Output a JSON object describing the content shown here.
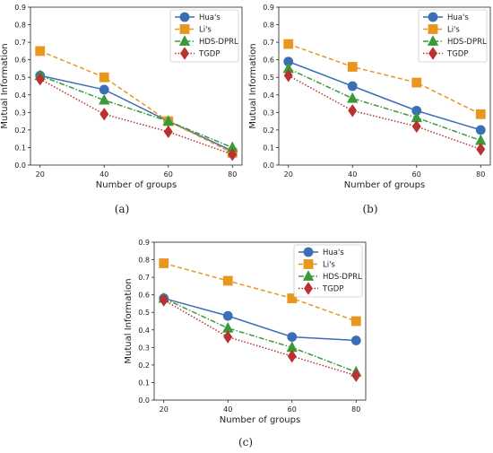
{
  "chart_data": [
    {
      "type": "line",
      "caption": "(a)",
      "xlabel": "Number of groups",
      "ylabel": "Mutual Information",
      "x": [
        20,
        40,
        60,
        80
      ],
      "xticks": [
        "20",
        "40",
        "60",
        "80"
      ],
      "ylim": [
        0,
        0.9
      ],
      "yticks": [
        "0.0",
        "0.1",
        "0.2",
        "0.3",
        "0.4",
        "0.5",
        "0.6",
        "0.7",
        "0.8",
        "0.9"
      ],
      "legend_position": "top-right",
      "grid": false,
      "series": [
        {
          "name": "Hua's",
          "values": [
            0.51,
            0.43,
            0.25,
            0.08
          ],
          "color": "#3a6fb5",
          "dash": "solid",
          "marker": "circle"
        },
        {
          "name": "Li's",
          "values": [
            0.65,
            0.5,
            0.25,
            0.07
          ],
          "color": "#e8961e",
          "dash": "dashed",
          "marker": "square"
        },
        {
          "name": "HDS-DPRL",
          "values": [
            0.51,
            0.37,
            0.25,
            0.1
          ],
          "color": "#3a9a3a",
          "dash": "dashdot",
          "marker": "triangle"
        },
        {
          "name": "TGDP",
          "values": [
            0.49,
            0.29,
            0.19,
            0.06
          ],
          "color": "#b83232",
          "dash": "dotted",
          "marker": "diamond"
        }
      ]
    },
    {
      "type": "line",
      "caption": "(b)",
      "xlabel": "Number of groups",
      "ylabel": "Mutual Information",
      "x": [
        20,
        40,
        60,
        80
      ],
      "xticks": [
        "20",
        "40",
        "60",
        "80"
      ],
      "ylim": [
        0,
        0.9
      ],
      "yticks": [
        "0.0",
        "0.1",
        "0.2",
        "0.3",
        "0.4",
        "0.5",
        "0.6",
        "0.7",
        "0.8",
        "0.9"
      ],
      "legend_position": "top-right",
      "grid": false,
      "series": [
        {
          "name": "Hua's",
          "values": [
            0.59,
            0.45,
            0.31,
            0.2
          ],
          "color": "#3a6fb5",
          "dash": "solid",
          "marker": "circle"
        },
        {
          "name": "Li's",
          "values": [
            0.69,
            0.56,
            0.47,
            0.29
          ],
          "color": "#e8961e",
          "dash": "dashed",
          "marker": "square"
        },
        {
          "name": "HDS-DPRL",
          "values": [
            0.55,
            0.38,
            0.27,
            0.14
          ],
          "color": "#3a9a3a",
          "dash": "dashdot",
          "marker": "triangle"
        },
        {
          "name": "TGDP",
          "values": [
            0.51,
            0.31,
            0.22,
            0.09
          ],
          "color": "#b83232",
          "dash": "dotted",
          "marker": "diamond"
        }
      ]
    },
    {
      "type": "line",
      "caption": "(c)",
      "xlabel": "Number of groups",
      "ylabel": "Mutual Information",
      "x": [
        20,
        40,
        60,
        80
      ],
      "xticks": [
        "20",
        "40",
        "60",
        "80"
      ],
      "ylim": [
        0,
        0.9
      ],
      "yticks": [
        "0.0",
        "0.1",
        "0.2",
        "0.3",
        "0.4",
        "0.5",
        "0.6",
        "0.7",
        "0.8",
        "0.9"
      ],
      "legend_position": "top-right",
      "grid": false,
      "series": [
        {
          "name": "Hua's",
          "values": [
            0.58,
            0.48,
            0.36,
            0.34
          ],
          "color": "#3a6fb5",
          "dash": "solid",
          "marker": "circle"
        },
        {
          "name": "Li's",
          "values": [
            0.78,
            0.68,
            0.58,
            0.45
          ],
          "color": "#e8961e",
          "dash": "dashed",
          "marker": "square"
        },
        {
          "name": "HDS-DPRL",
          "values": [
            0.58,
            0.41,
            0.3,
            0.16
          ],
          "color": "#3a9a3a",
          "dash": "dashdot",
          "marker": "triangle"
        },
        {
          "name": "TGDP",
          "values": [
            0.57,
            0.36,
            0.25,
            0.14
          ],
          "color": "#b83232",
          "dash": "dotted",
          "marker": "diamond"
        }
      ]
    }
  ]
}
